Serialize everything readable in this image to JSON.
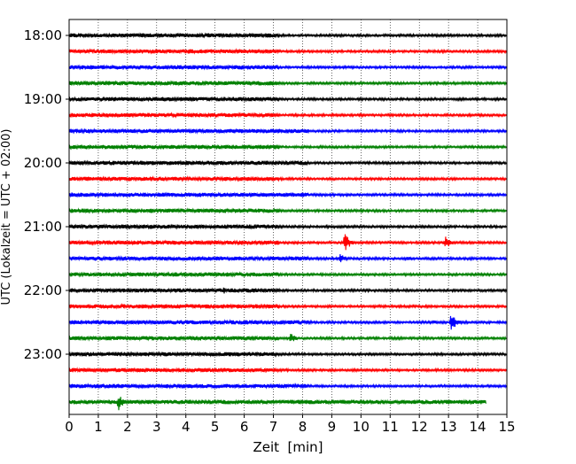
{
  "chart_data": {
    "type": "line",
    "xlabel": "Zeit  [min]",
    "ylabel": "UTC (Lokalzeit = UTC + 02:00)",
    "xlim": [
      0,
      15
    ],
    "x_ticks": [
      "0",
      "1",
      "2",
      "3",
      "4",
      "5",
      "6",
      "7",
      "8",
      "9",
      "10",
      "11",
      "12",
      "13",
      "14",
      "15"
    ],
    "y_ticks": [
      "18:00",
      "19:00",
      "20:00",
      "21:00",
      "22:00",
      "23:00"
    ],
    "grid": "vertical dotted lines at each minute",
    "trace_colors": [
      "#000000",
      "#ff0000",
      "#0000ff",
      "#008000"
    ],
    "traces": [
      {
        "start": "18:00",
        "end_min": 15,
        "noise_level": "high_first_7min"
      },
      {
        "start": "18:15",
        "end_min": 15,
        "noise_level": "high_first_7min"
      },
      {
        "start": "18:30",
        "end_min": 15,
        "noise_level": "high_first_7min"
      },
      {
        "start": "18:45",
        "end_min": 15,
        "noise_level": "high_first_7min"
      },
      {
        "start": "19:00",
        "end_min": 15,
        "noise_level": "high_first_7min"
      },
      {
        "start": "19:15",
        "end_min": 15,
        "noise_level": "high_first_7min"
      },
      {
        "start": "19:30",
        "end_min": 15,
        "noise_level": "high_first_8min"
      },
      {
        "start": "19:45",
        "end_min": 15,
        "noise_level": "high_first_7min"
      },
      {
        "start": "20:00",
        "end_min": 15,
        "noise_level": "high_first_8min"
      },
      {
        "start": "20:15",
        "end_min": 15,
        "noise_level": "high_first_7min"
      },
      {
        "start": "20:30",
        "end_min": 15,
        "noise_level": "high_first_8min"
      },
      {
        "start": "20:45",
        "end_min": 15,
        "noise_level": "high_first_7min"
      },
      {
        "start": "21:00",
        "end_min": 15,
        "noise_level": "high_first_7min"
      },
      {
        "start": "21:15",
        "end_min": 15,
        "noise_level": "high_first_7min",
        "events": [
          {
            "x": 9.45,
            "amplitude": 12
          },
          {
            "x": 12.9,
            "amplitude": 8
          }
        ]
      },
      {
        "start": "21:30",
        "end_min": 15,
        "noise_level": "high_first_8min",
        "events": [
          {
            "x": 9.3,
            "amplitude": 6
          },
          {
            "x": 11.6,
            "amplitude": 3
          }
        ]
      },
      {
        "start": "21:45",
        "end_min": 15,
        "noise_level": "high_first_7min"
      },
      {
        "start": "22:00",
        "end_min": 15,
        "noise_level": "high_first_7min",
        "events": [
          {
            "x": 5.3,
            "amplitude": 4
          }
        ]
      },
      {
        "start": "22:15",
        "end_min": 15,
        "noise_level": "high_first_7min"
      },
      {
        "start": "22:30",
        "end_min": 15,
        "noise_level": "high_first_8min",
        "events": [
          {
            "x": 13.1,
            "amplitude": 11
          },
          {
            "x": 12.5,
            "amplitude": 3
          }
        ]
      },
      {
        "start": "22:45",
        "end_min": 15,
        "noise_level": "high_first_7min",
        "events": [
          {
            "x": 7.6,
            "amplitude": 6
          }
        ]
      },
      {
        "start": "23:00",
        "end_min": 15,
        "noise_level": "high_first_7min"
      },
      {
        "start": "23:15",
        "end_min": 15,
        "noise_level": "high_first_7min"
      },
      {
        "start": "23:30",
        "end_min": 15,
        "noise_level": "high_first_8min"
      },
      {
        "start": "23:45",
        "end_min": 14.3,
        "noise_level": "high_all",
        "events": [
          {
            "x": 1.7,
            "amplitude": 10
          }
        ]
      }
    ]
  }
}
